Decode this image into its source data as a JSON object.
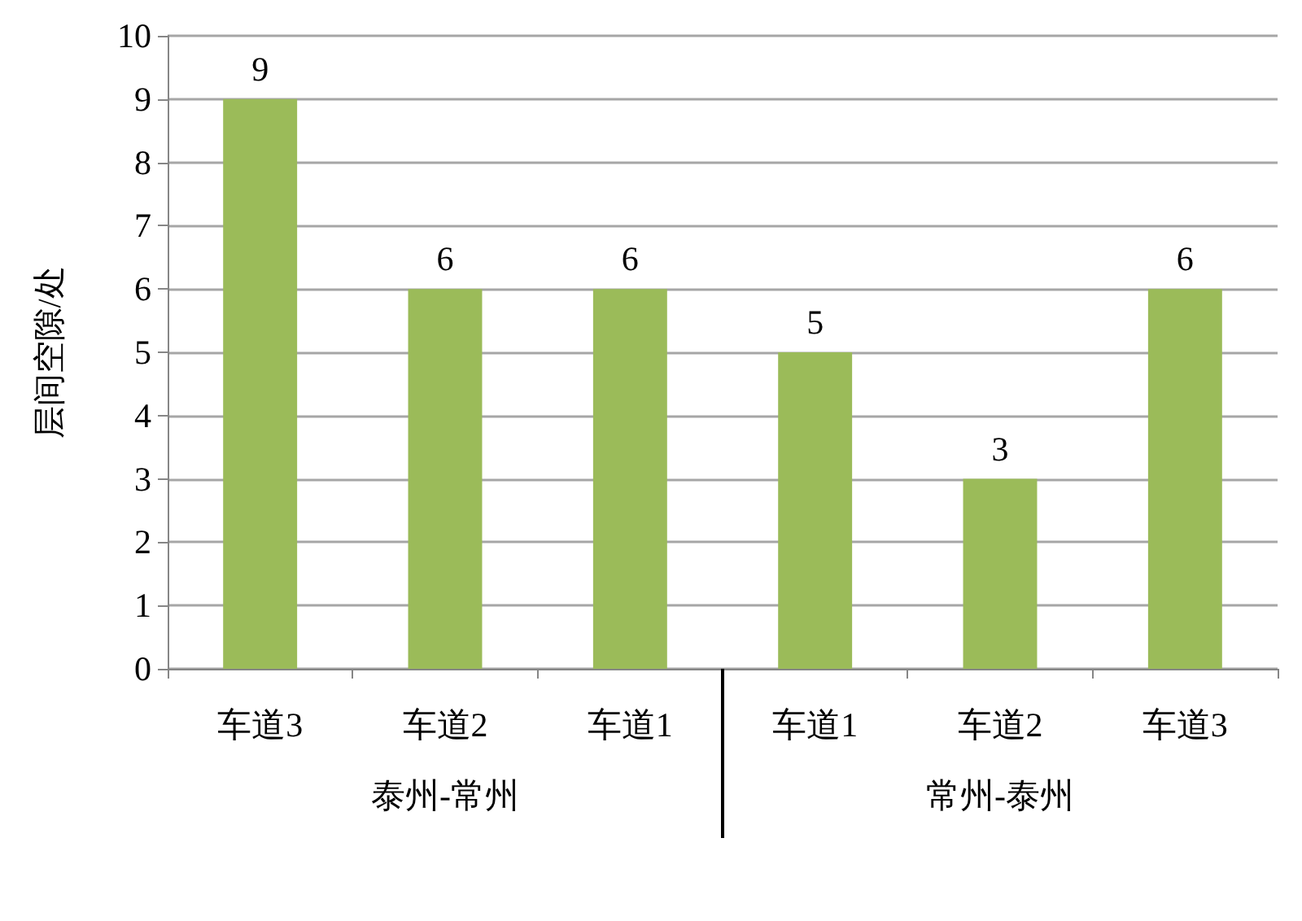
{
  "chart_data": {
    "type": "bar",
    "ylabel": "层间空隙/处",
    "categories": [
      "车道3",
      "车道2",
      "车道1",
      "车道1",
      "车道2",
      "车道3"
    ],
    "values": [
      9,
      6,
      6,
      5,
      3,
      6
    ],
    "color": "#9bbb59",
    "ylim": [
      0,
      10
    ],
    "yticks": [
      0,
      1,
      2,
      3,
      4,
      5,
      6,
      7,
      8,
      9,
      10
    ],
    "grid": "y",
    "data_labels": true,
    "annotations": [
      "泰州-常州",
      "常州-泰州"
    ]
  }
}
